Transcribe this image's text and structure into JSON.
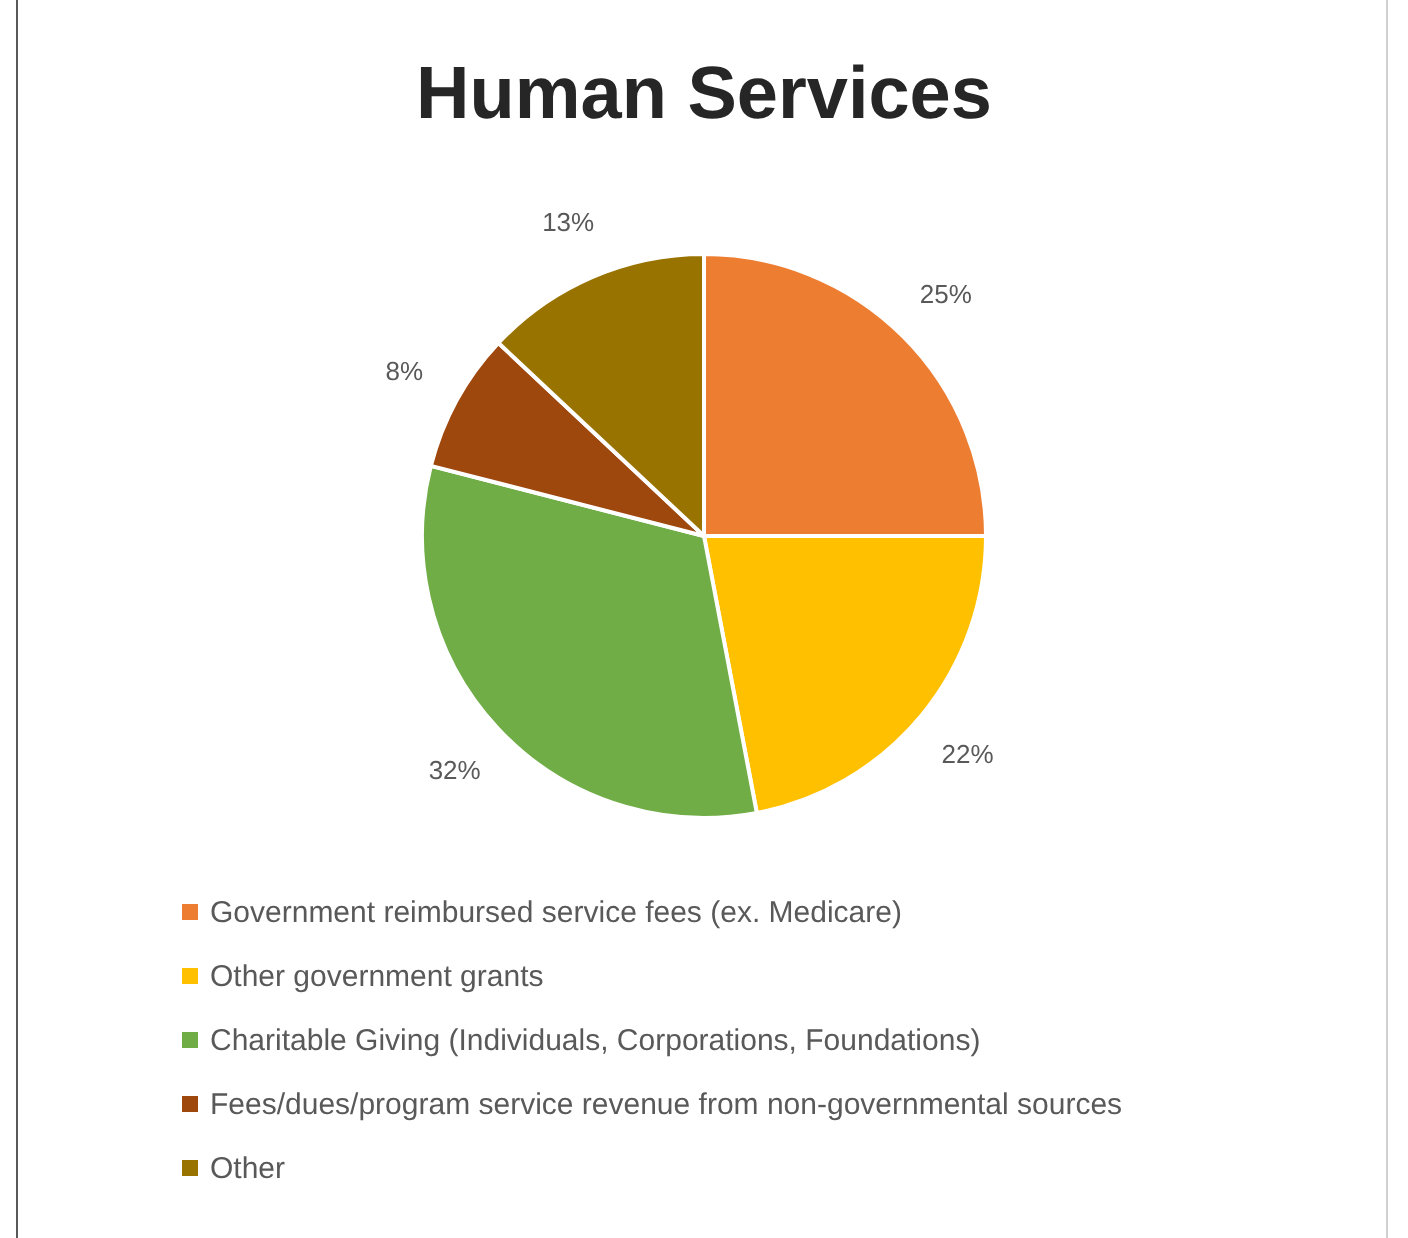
{
  "chart_data": {
    "type": "pie",
    "title": "Human Services",
    "categories": [
      "Government reimbursed service fees (ex. Medicare)",
      "Other government grants",
      "Charitable Giving (Individuals, Corporations, Foundations)",
      "Fees/dues/program service revenue from non-governmental sources",
      "Other"
    ],
    "values": [
      25,
      22,
      32,
      8,
      13
    ],
    "value_labels": [
      "25%",
      "22%",
      "32%",
      "8%",
      "13%"
    ],
    "colors": [
      "#ed7d31",
      "#ffc000",
      "#70ad47",
      "#9e480e",
      "#997300"
    ],
    "legend": "bottom"
  }
}
